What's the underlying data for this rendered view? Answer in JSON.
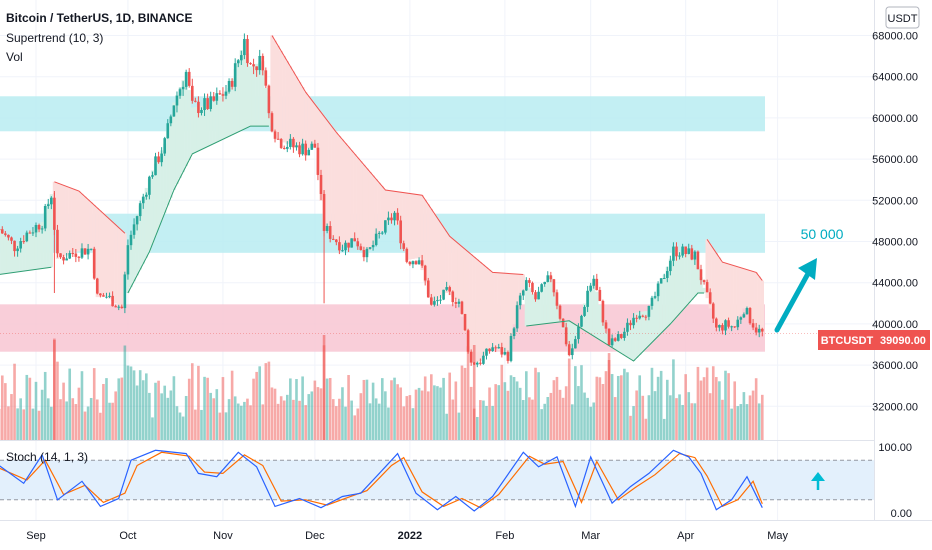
{
  "header": {
    "symbol_line": "Bitcoin / TetherUS, 1D, BINANCE",
    "indicator1": "Supertrend (10, 3)",
    "indicator2": "Vol",
    "currency_button": "USDT"
  },
  "stoch": {
    "label": "Stoch (14, 1, 3)"
  },
  "annotation": {
    "target_text": "50 000"
  },
  "price_tag": {
    "ticker": "BTCUSDT",
    "price": "39090.00"
  },
  "colors": {
    "up": "#26a69a",
    "down": "#ef5350",
    "accent": "#00bcd4",
    "zone_cyan": "#b9ecf1",
    "zone_pink": "#f8c6d2",
    "st_up_fill": "#d7f0e7",
    "st_down_fill": "#fbdedd"
  },
  "chart_data": {
    "type": "candlestick",
    "title": "Bitcoin / TetherUS, 1D, BINANCE",
    "y_ticks": [
      "68000.00",
      "64000.00",
      "60000.00",
      "56000.00",
      "52000.00",
      "48000.00",
      "44000.00",
      "40000.00",
      "36000.00",
      "32000.00"
    ],
    "y_range": [
      28500,
      69500
    ],
    "stoch_ticks": [
      "100.00",
      "0.00"
    ],
    "x_ticks": [
      "Sep",
      "Oct",
      "Nov",
      "Dec",
      "2022",
      "Feb",
      "Mar",
      "Apr",
      "May"
    ],
    "zones": [
      {
        "name": "resistance-upper",
        "low": 58700,
        "high": 62100,
        "color": "cyan"
      },
      {
        "name": "resistance-mid",
        "low": 46900,
        "high": 50700,
        "color": "cyan"
      },
      {
        "name": "support",
        "low": 37300,
        "high": 41900,
        "color": "pink"
      }
    ],
    "last_price": 39090,
    "target": 50000,
    "price_path": [
      [
        "2021-08-20",
        49200
      ],
      [
        "2021-08-25",
        47500
      ],
      [
        "2021-08-29",
        48800
      ],
      [
        "2021-09-03",
        49900
      ],
      [
        "2021-09-06",
        52600
      ],
      [
        "2021-09-08",
        46300
      ],
      [
        "2021-09-14",
        47000
      ],
      [
        "2021-09-19",
        47300
      ],
      [
        "2021-09-21",
        42600
      ],
      [
        "2021-09-24",
        42700
      ],
      [
        "2021-09-29",
        41500
      ],
      [
        "2021-10-01",
        47700
      ],
      [
        "2021-10-05",
        51500
      ],
      [
        "2021-10-09",
        54900
      ],
      [
        "2021-10-13",
        57500
      ],
      [
        "2021-10-16",
        61500
      ],
      [
        "2021-10-20",
        64400
      ],
      [
        "2021-10-22",
        61000
      ],
      [
        "2021-10-28",
        61300
      ],
      [
        "2021-11-03",
        62900
      ],
      [
        "2021-11-08",
        67500
      ],
      [
        "2021-11-10",
        65000
      ],
      [
        "2021-11-14",
        65500
      ],
      [
        "2021-11-16",
        60300
      ],
      [
        "2021-11-19",
        57900
      ],
      [
        "2021-11-24",
        57200
      ],
      [
        "2021-11-28",
        57000
      ],
      [
        "2021-12-01",
        57200
      ],
      [
        "2021-12-04",
        49300
      ],
      [
        "2021-12-10",
        47500
      ],
      [
        "2021-12-14",
        48300
      ],
      [
        "2021-12-18",
        46700
      ],
      [
        "2021-12-22",
        48600
      ],
      [
        "2021-12-27",
        50700
      ],
      [
        "2021-12-31",
        46200
      ],
      [
        "2022-01-04",
        46400
      ],
      [
        "2022-01-08",
        41700
      ],
      [
        "2022-01-13",
        43000
      ],
      [
        "2022-01-17",
        42200
      ],
      [
        "2022-01-21",
        36200
      ],
      [
        "2022-01-24",
        36400
      ],
      [
        "2022-01-28",
        37800
      ],
      [
        "2022-02-02",
        36900
      ],
      [
        "2022-02-05",
        41500
      ],
      [
        "2022-02-08",
        44000
      ],
      [
        "2022-02-11",
        42400
      ],
      [
        "2022-02-16",
        44600
      ],
      [
        "2022-02-22",
        37000
      ],
      [
        "2022-02-24",
        38300
      ],
      [
        "2022-02-28",
        43200
      ],
      [
        "2022-03-02",
        44400
      ],
      [
        "2022-03-07",
        38000
      ],
      [
        "2022-03-11",
        38800
      ],
      [
        "2022-03-16",
        41100
      ],
      [
        "2022-03-20",
        41300
      ],
      [
        "2022-03-24",
        44000
      ],
      [
        "2022-03-28",
        47100
      ],
      [
        "2022-03-30",
        47100
      ],
      [
        "2022-04-04",
        46600
      ],
      [
        "2022-04-07",
        43500
      ],
      [
        "2022-04-11",
        39500
      ],
      [
        "2022-04-14",
        39900
      ],
      [
        "2022-04-17",
        39700
      ],
      [
        "2022-04-20",
        41500
      ],
      [
        "2022-04-24",
        39500
      ],
      [
        "2022-04-26",
        39090
      ]
    ],
    "supertrend": [
      {
        "trend": "up",
        "points": [
          [
            "2021-08-20",
            44800
          ],
          [
            "2021-09-06",
            45500
          ]
        ]
      },
      {
        "trend": "down",
        "points": [
          [
            "2021-09-07",
            53800
          ],
          [
            "2021-09-15",
            52900
          ],
          [
            "2021-09-30",
            48800
          ]
        ]
      },
      {
        "trend": "up",
        "points": [
          [
            "2021-10-01",
            43000
          ],
          [
            "2021-10-08",
            47000
          ],
          [
            "2021-10-16",
            53000
          ],
          [
            "2021-10-22",
            56500
          ],
          [
            "2021-11-10",
            59200
          ],
          [
            "2021-11-16",
            59200
          ]
        ]
      },
      {
        "trend": "down",
        "points": [
          [
            "2021-11-17",
            68000
          ],
          [
            "2021-11-28",
            62500
          ],
          [
            "2021-12-08",
            58600
          ],
          [
            "2021-12-24",
            53000
          ],
          [
            "2022-01-05",
            52500
          ],
          [
            "2022-01-14",
            48500
          ],
          [
            "2022-01-28",
            45000
          ],
          [
            "2022-02-07",
            44800
          ]
        ]
      },
      {
        "trend": "up",
        "points": [
          [
            "2022-02-08",
            39800
          ],
          [
            "2022-02-22",
            40300
          ],
          [
            "2022-03-15",
            36400
          ],
          [
            "2022-03-27",
            40000
          ],
          [
            "2022-04-05",
            43000
          ],
          [
            "2022-04-07",
            43000
          ]
        ]
      },
      {
        "trend": "down",
        "points": [
          [
            "2022-04-08",
            48200
          ],
          [
            "2022-04-13",
            46000
          ],
          [
            "2022-04-24",
            45000
          ],
          [
            "2022-04-26",
            44200
          ]
        ]
      }
    ],
    "stochastic": {
      "overbought": 80,
      "oversold": 20,
      "k": [
        [
          "2021-08-20",
          72
        ],
        [
          "2021-08-28",
          45
        ],
        [
          "2021-09-03",
          88
        ],
        [
          "2021-09-08",
          20
        ],
        [
          "2021-09-16",
          48
        ],
        [
          "2021-09-22",
          10
        ],
        [
          "2021-09-28",
          22
        ],
        [
          "2021-10-02",
          80
        ],
        [
          "2021-10-10",
          95
        ],
        [
          "2021-10-20",
          90
        ],
        [
          "2021-10-24",
          60
        ],
        [
          "2021-10-30",
          55
        ],
        [
          "2021-11-06",
          92
        ],
        [
          "2021-11-12",
          70
        ],
        [
          "2021-11-18",
          10
        ],
        [
          "2021-11-26",
          22
        ],
        [
          "2021-12-03",
          8
        ],
        [
          "2021-12-10",
          25
        ],
        [
          "2021-12-16",
          30
        ],
        [
          "2021-12-24",
          70
        ],
        [
          "2021-12-28",
          90
        ],
        [
          "2022-01-03",
          30
        ],
        [
          "2022-01-10",
          5
        ],
        [
          "2022-01-16",
          25
        ],
        [
          "2022-01-22",
          3
        ],
        [
          "2022-01-28",
          25
        ],
        [
          "2022-02-07",
          92
        ],
        [
          "2022-02-12",
          70
        ],
        [
          "2022-02-18",
          85
        ],
        [
          "2022-02-24",
          10
        ],
        [
          "2022-03-01",
          85
        ],
        [
          "2022-03-08",
          15
        ],
        [
          "2022-03-14",
          40
        ],
        [
          "2022-03-20",
          60
        ],
        [
          "2022-03-28",
          95
        ],
        [
          "2022-04-02",
          85
        ],
        [
          "2022-04-06",
          60
        ],
        [
          "2022-04-11",
          5
        ],
        [
          "2022-04-16",
          20
        ],
        [
          "2022-04-21",
          55
        ],
        [
          "2022-04-26",
          8
        ]
      ],
      "d": [
        [
          "2021-08-20",
          68
        ],
        [
          "2021-08-29",
          50
        ],
        [
          "2021-09-04",
          80
        ],
        [
          "2021-09-10",
          28
        ],
        [
          "2021-09-17",
          42
        ],
        [
          "2021-09-23",
          16
        ],
        [
          "2021-09-30",
          30
        ],
        [
          "2021-10-04",
          72
        ],
        [
          "2021-10-12",
          92
        ],
        [
          "2021-10-21",
          86
        ],
        [
          "2021-10-26",
          62
        ],
        [
          "2021-11-01",
          60
        ],
        [
          "2021-11-08",
          88
        ],
        [
          "2021-11-14",
          72
        ],
        [
          "2021-11-20",
          18
        ],
        [
          "2021-11-28",
          20
        ],
        [
          "2021-12-05",
          12
        ],
        [
          "2021-12-12",
          24
        ],
        [
          "2021-12-18",
          34
        ],
        [
          "2021-12-26",
          72
        ],
        [
          "2021-12-30",
          84
        ],
        [
          "2022-01-05",
          32
        ],
        [
          "2022-01-12",
          10
        ],
        [
          "2022-01-18",
          22
        ],
        [
          "2022-01-24",
          8
        ],
        [
          "2022-01-30",
          28
        ],
        [
          "2022-02-09",
          86
        ],
        [
          "2022-02-14",
          74
        ],
        [
          "2022-02-20",
          78
        ],
        [
          "2022-02-26",
          16
        ],
        [
          "2022-03-03",
          78
        ],
        [
          "2022-03-10",
          20
        ],
        [
          "2022-03-16",
          40
        ],
        [
          "2022-03-22",
          58
        ],
        [
          "2022-03-30",
          90
        ],
        [
          "2022-04-04",
          84
        ],
        [
          "2022-04-08",
          56
        ],
        [
          "2022-04-13",
          10
        ],
        [
          "2022-04-18",
          20
        ],
        [
          "2022-04-23",
          48
        ],
        [
          "2022-04-26",
          14
        ]
      ]
    }
  }
}
